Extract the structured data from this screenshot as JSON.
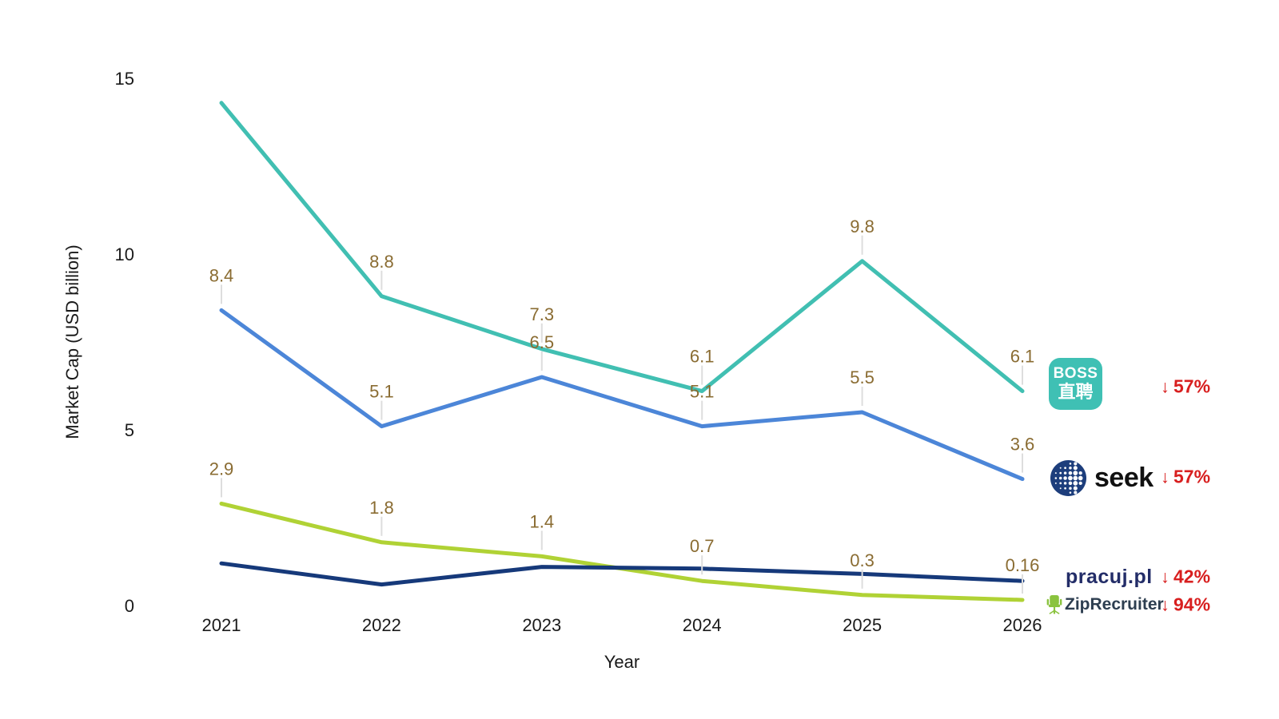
{
  "chart_data": {
    "type": "line",
    "title": "",
    "xlabel": "Year",
    "ylabel": "Market Cap (USD billion)",
    "x": [
      2021,
      2022,
      2023,
      2024,
      2025,
      2026
    ],
    "yticks": [
      0,
      5,
      10,
      15
    ],
    "ylim": [
      0,
      15
    ],
    "grid": false,
    "legend_position": "right",
    "point_label_color": "#8a6c32",
    "series": [
      {
        "name": "BOSS直聘",
        "color": "#41bfb2",
        "values": [
          14.3,
          8.8,
          7.3,
          6.1,
          9.8,
          6.1
        ],
        "point_labels": [
          "",
          "8.8",
          "7.3",
          "6.1",
          "9.8",
          "6.1"
        ]
      },
      {
        "name": "seek",
        "color": "#4c86d8",
        "values": [
          8.4,
          5.1,
          6.5,
          5.1,
          5.5,
          3.6
        ],
        "point_labels": [
          "8.4",
          "5.1",
          "6.5",
          "5.1",
          "5.5",
          "3.6"
        ]
      },
      {
        "name": "ZipRecruiter",
        "color": "#b0d235",
        "values": [
          2.9,
          1.8,
          1.4,
          0.7,
          0.3,
          0.16
        ],
        "point_labels": [
          "2.9",
          "1.8",
          "1.4",
          "0.7",
          "0.3",
          "0.16"
        ]
      },
      {
        "name": "pracuj.pl",
        "color": "#16397a",
        "values": [
          1.2,
          0.6,
          1.1,
          1.05,
          0.9,
          0.7
        ],
        "point_labels": [
          "",
          "",
          "",
          "",
          "",
          ""
        ]
      }
    ]
  },
  "legend": {
    "boss": {
      "logo_line1": "BOSS",
      "logo_line2": "直聘",
      "arrow": "↓",
      "change": "57%"
    },
    "seek": {
      "wordmark": "seek",
      "arrow": "↓",
      "change": "57%"
    },
    "pracuj": {
      "wordmark": "pracuj.pl",
      "arrow": "↓",
      "change": "42%"
    },
    "zip": {
      "wordmark": "ZipRecruiter",
      "arrow": "↓",
      "change": "94%"
    }
  },
  "colors": {
    "decline_red": "#d81f1f",
    "axis_text": "#1a1a1a",
    "label_connector": "#dddddd",
    "boss_teal": "#3fc0b4",
    "seek_navy": "#1d3e7c",
    "zip_green": "#8ac33e"
  }
}
